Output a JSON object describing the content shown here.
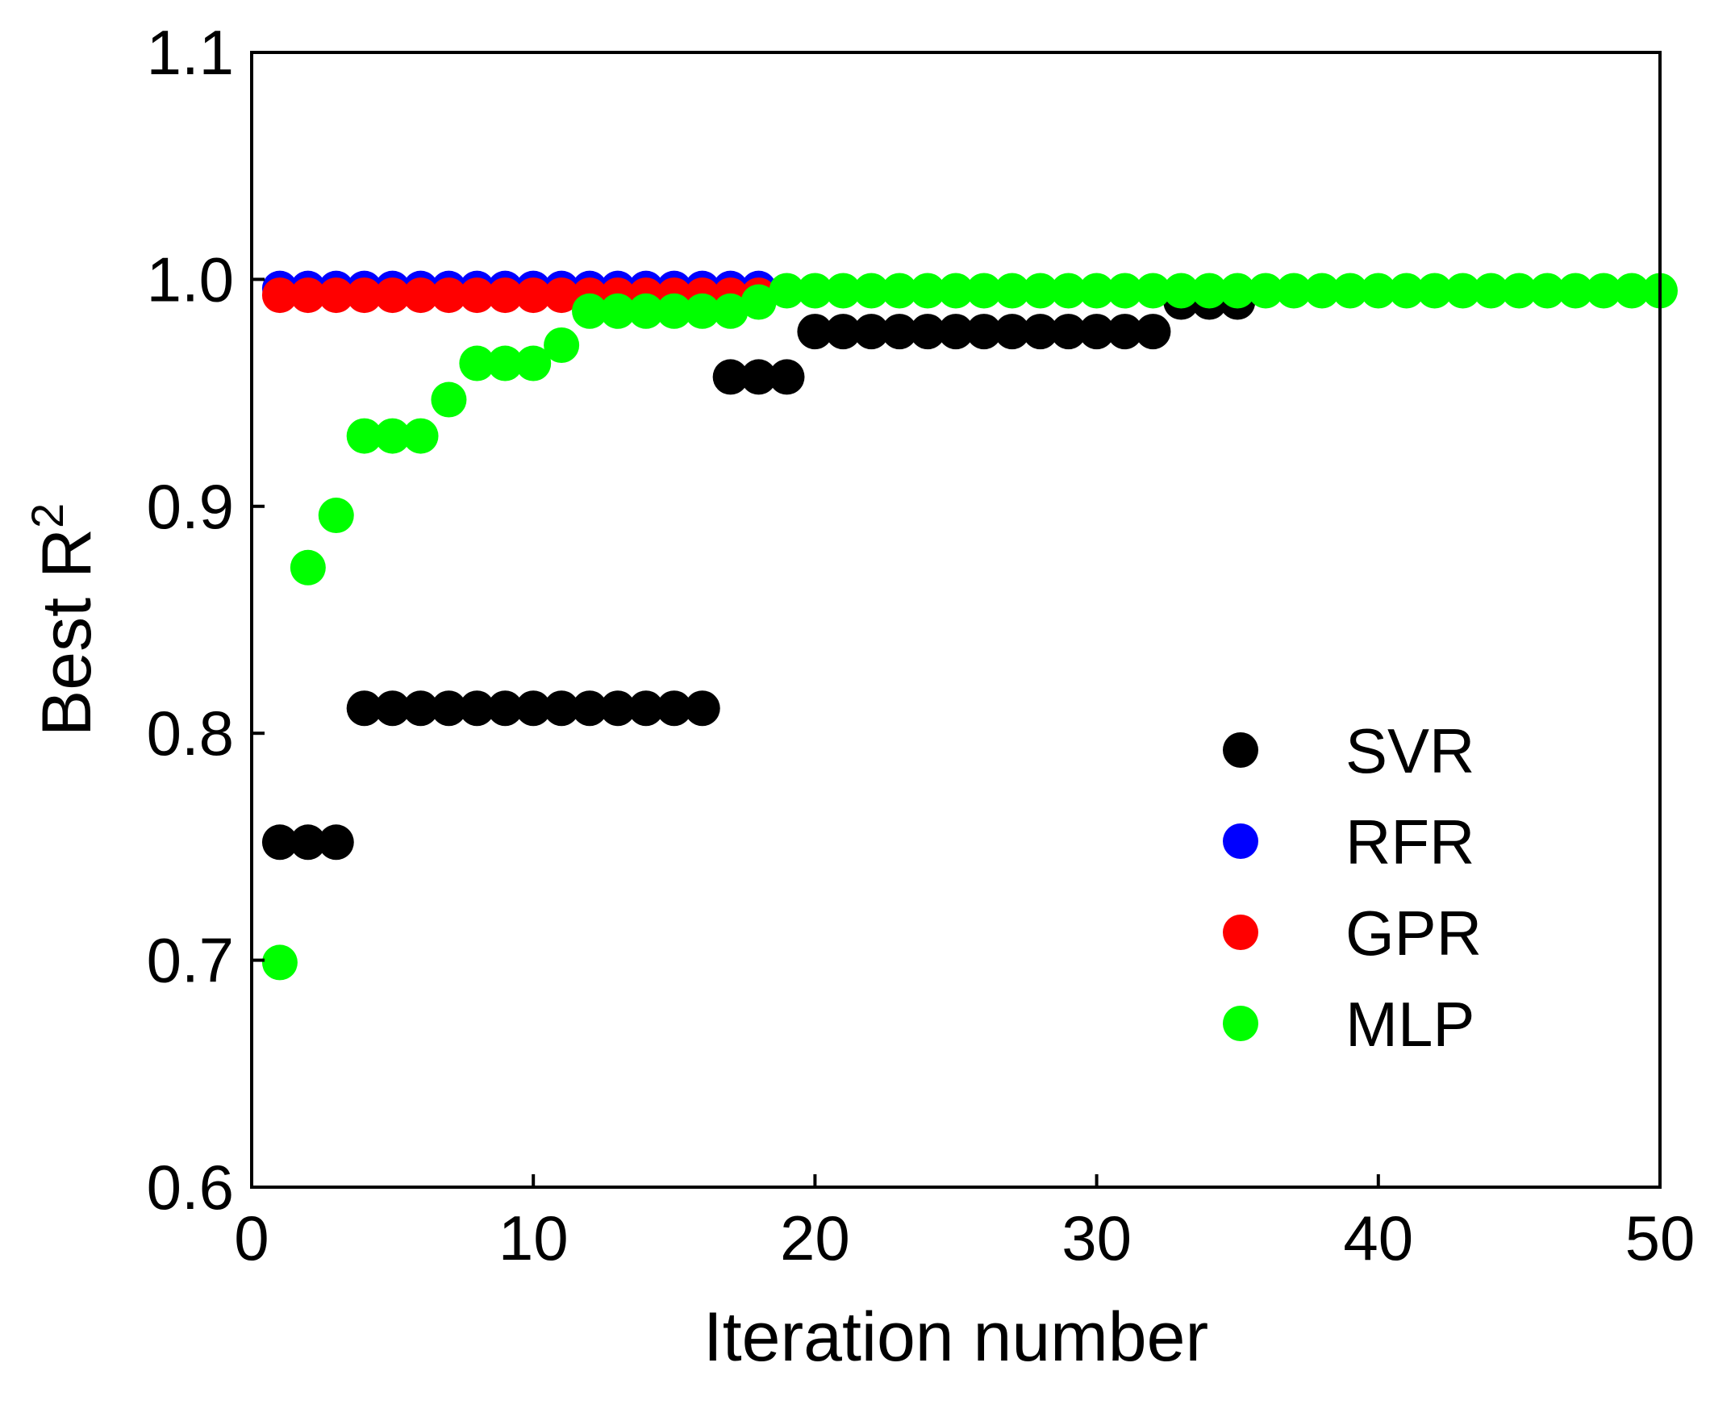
{
  "chart_data": {
    "type": "scatter",
    "title": "",
    "xlabel": "Iteration number",
    "ylabel_base": "Best R",
    "ylabel_superscript": "2",
    "xlim": [
      0,
      50
    ],
    "ylim": [
      0.6,
      1.1
    ],
    "xticks": [
      0,
      10,
      20,
      30,
      40,
      50
    ],
    "yticks": [
      0.6,
      0.7,
      0.8,
      0.9,
      1.0,
      1.1
    ],
    "xtick_labels": [
      "0",
      "10",
      "20",
      "30",
      "40",
      "50"
    ],
    "ytick_labels": [
      "0.6",
      "0.7",
      "0.8",
      "0.9",
      "1.0",
      "1.1"
    ],
    "grid": false,
    "legend_position": "center-right",
    "series": [
      {
        "name": "SVR",
        "color": "#000000",
        "x": [
          1,
          2,
          3,
          4,
          5,
          6,
          7,
          8,
          9,
          10,
          11,
          12,
          13,
          14,
          15,
          16,
          17,
          18,
          19,
          20,
          21,
          22,
          23,
          24,
          25,
          26,
          27,
          28,
          29,
          30,
          31,
          32,
          33,
          34,
          35
        ],
        "y": [
          0.752,
          0.752,
          0.752,
          0.811,
          0.811,
          0.811,
          0.811,
          0.811,
          0.811,
          0.811,
          0.811,
          0.811,
          0.811,
          0.811,
          0.811,
          0.811,
          0.957,
          0.957,
          0.957,
          0.977,
          0.977,
          0.977,
          0.977,
          0.977,
          0.977,
          0.977,
          0.977,
          0.977,
          0.977,
          0.977,
          0.977,
          0.977,
          0.99,
          0.99,
          0.99
        ]
      },
      {
        "name": "RFR",
        "color": "#0000ff",
        "x": [
          1,
          2,
          3,
          4,
          5,
          6,
          7,
          8,
          9,
          10,
          11,
          12,
          13,
          14,
          15,
          16,
          17,
          18
        ],
        "y": [
          0.996,
          0.996,
          0.996,
          0.996,
          0.996,
          0.996,
          0.996,
          0.996,
          0.996,
          0.996,
          0.996,
          0.996,
          0.996,
          0.996,
          0.996,
          0.996,
          0.996,
          0.996
        ]
      },
      {
        "name": "GPR",
        "color": "#ff0000",
        "x": [
          1,
          2,
          3,
          4,
          5,
          6,
          7,
          8,
          9,
          10,
          11,
          12,
          13,
          14,
          15,
          16,
          17,
          18
        ],
        "y": [
          0.993,
          0.993,
          0.993,
          0.993,
          0.993,
          0.993,
          0.993,
          0.993,
          0.993,
          0.993,
          0.993,
          0.993,
          0.993,
          0.993,
          0.993,
          0.993,
          0.993,
          0.993
        ]
      },
      {
        "name": "MLP",
        "color": "#00ff00",
        "x": [
          1,
          2,
          3,
          4,
          5,
          6,
          7,
          8,
          9,
          10,
          11,
          12,
          13,
          14,
          15,
          16,
          17,
          18,
          19,
          20,
          21,
          22,
          23,
          24,
          25,
          26,
          27,
          28,
          29,
          30,
          31,
          32,
          33,
          34,
          35,
          36,
          37,
          38,
          39,
          40,
          41,
          42,
          43,
          44,
          45,
          46,
          47,
          48,
          49,
          50
        ],
        "y": [
          0.699,
          0.873,
          0.896,
          0.931,
          0.931,
          0.931,
          0.947,
          0.963,
          0.963,
          0.963,
          0.971,
          0.986,
          0.986,
          0.986,
          0.986,
          0.986,
          0.986,
          0.99,
          0.995,
          0.995,
          0.995,
          0.995,
          0.995,
          0.995,
          0.995,
          0.995,
          0.995,
          0.995,
          0.995,
          0.995,
          0.995,
          0.995,
          0.995,
          0.995,
          0.995,
          0.995,
          0.995,
          0.995,
          0.995,
          0.995,
          0.995,
          0.995,
          0.995,
          0.995,
          0.995,
          0.995,
          0.995,
          0.995,
          0.995,
          0.995
        ]
      }
    ]
  }
}
